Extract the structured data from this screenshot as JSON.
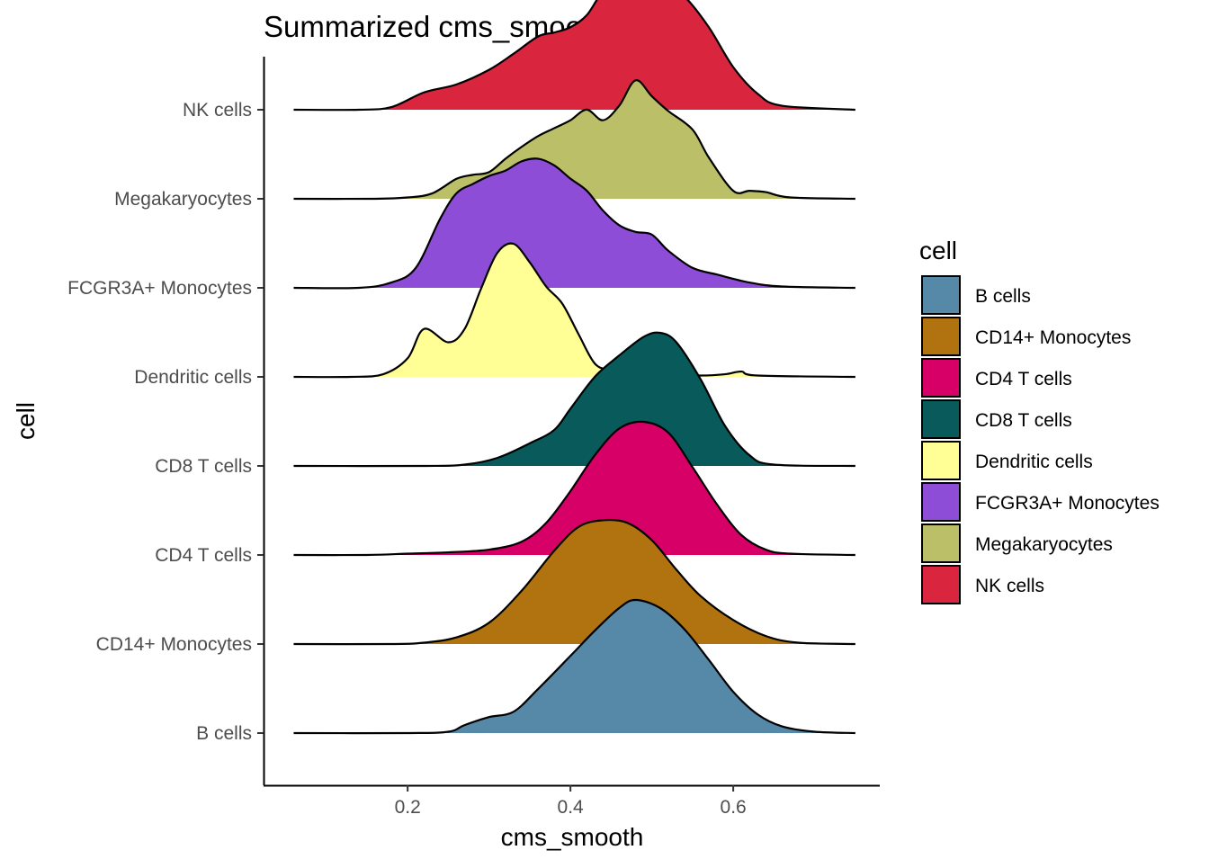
{
  "chart_data": {
    "type": "ridgeline",
    "title": "Summarized cms_smooth",
    "xlabel": "cms_smooth",
    "ylabel": "cell",
    "xlim": [
      0.023,
      0.78
    ],
    "x_ticks": [
      0.2,
      0.4,
      0.6
    ],
    "x_tick_labels": [
      "0.2",
      "0.4",
      "0.6"
    ],
    "grid": false,
    "legend": {
      "title": "cell",
      "position": "right",
      "entries": [
        {
          "label": "B cells",
          "color": "#5689a7"
        },
        {
          "label": "CD14+ Monocytes",
          "color": "#b0730f"
        },
        {
          "label": "CD4 T cells",
          "color": "#d60066"
        },
        {
          "label": "CD8 T cells",
          "color": "#095a5a"
        },
        {
          "label": "Dendritic cells",
          "color": "#ffff96"
        },
        {
          "label": "FCGR3A+ Monocytes",
          "color": "#8e4dd6"
        },
        {
          "label": "Megakaryocytes",
          "color": "#bbbf68"
        },
        {
          "label": "NK cells",
          "color": "#d9253e"
        }
      ]
    },
    "categories": [
      "B cells",
      "CD14+ Monocytes",
      "CD4 T cells",
      "CD8 T cells",
      "Dendritic cells",
      "FCGR3A+ Monocytes",
      "Megakaryocytes",
      "NK cells"
    ],
    "x_range": [
      0.06,
      0.75
    ],
    "series": [
      {
        "name": "B cells",
        "color": "#5689a7",
        "x": [
          0.06,
          0.2,
          0.25,
          0.27,
          0.3,
          0.33,
          0.36,
          0.4,
          0.43,
          0.46,
          0.48,
          0.51,
          0.54,
          0.57,
          0.6,
          0.63,
          0.66,
          0.7,
          0.75
        ],
        "y": [
          0,
          0,
          0.01,
          0.06,
          0.12,
          0.16,
          0.33,
          0.58,
          0.77,
          0.94,
          1.0,
          0.94,
          0.78,
          0.55,
          0.31,
          0.14,
          0.05,
          0.01,
          0
        ]
      },
      {
        "name": "CD14+ Monocytes",
        "color": "#b0730f",
        "x": [
          0.06,
          0.18,
          0.22,
          0.26,
          0.3,
          0.34,
          0.38,
          0.41,
          0.44,
          0.47,
          0.5,
          0.53,
          0.56,
          0.6,
          0.64,
          0.68,
          0.75
        ],
        "y": [
          0,
          0,
          0.01,
          0.05,
          0.16,
          0.4,
          0.7,
          0.88,
          0.93,
          0.91,
          0.78,
          0.56,
          0.36,
          0.18,
          0.06,
          0.01,
          0
        ]
      },
      {
        "name": "CD4 T cells",
        "color": "#d60066",
        "x": [
          0.06,
          0.15,
          0.2,
          0.25,
          0.3,
          0.34,
          0.37,
          0.4,
          0.43,
          0.46,
          0.49,
          0.52,
          0.55,
          0.58,
          0.61,
          0.64,
          0.67,
          0.75
        ],
        "y": [
          0,
          0,
          0.01,
          0.02,
          0.04,
          0.1,
          0.24,
          0.48,
          0.75,
          0.95,
          1.0,
          0.92,
          0.66,
          0.38,
          0.15,
          0.04,
          0.01,
          0
        ]
      },
      {
        "name": "CD8 T cells",
        "color": "#095a5a",
        "x": [
          0.06,
          0.22,
          0.27,
          0.31,
          0.35,
          0.38,
          0.4,
          0.43,
          0.46,
          0.49,
          0.51,
          0.53,
          0.56,
          0.59,
          0.62,
          0.65,
          0.75
        ],
        "y": [
          0,
          0,
          0.01,
          0.06,
          0.17,
          0.27,
          0.43,
          0.67,
          0.83,
          0.97,
          1.0,
          0.93,
          0.65,
          0.3,
          0.08,
          0.01,
          0
        ]
      },
      {
        "name": "Dendritic cells",
        "color": "#ffff96",
        "x": [
          0.06,
          0.13,
          0.17,
          0.2,
          0.22,
          0.25,
          0.27,
          0.29,
          0.31,
          0.33,
          0.35,
          0.37,
          0.39,
          0.41,
          0.43,
          0.45,
          0.47,
          0.5,
          0.53,
          0.56,
          0.59,
          0.61,
          0.63,
          0.75
        ],
        "y": [
          0,
          0,
          0.02,
          0.14,
          0.36,
          0.26,
          0.36,
          0.66,
          0.93,
          1.0,
          0.86,
          0.68,
          0.55,
          0.32,
          0.1,
          0.05,
          0.04,
          0.07,
          0.02,
          0.01,
          0.02,
          0.04,
          0.01,
          0
        ]
      },
      {
        "name": "FCGR3A+ Monocytes",
        "color": "#8e4dd6",
        "x": [
          0.06,
          0.14,
          0.18,
          0.21,
          0.24,
          0.26,
          0.28,
          0.3,
          0.32,
          0.34,
          0.36,
          0.38,
          0.4,
          0.42,
          0.44,
          0.46,
          0.48,
          0.5,
          0.52,
          0.55,
          0.58,
          0.62,
          0.66,
          0.75
        ],
        "y": [
          0,
          0,
          0.04,
          0.15,
          0.52,
          0.71,
          0.78,
          0.84,
          0.88,
          0.95,
          0.97,
          0.92,
          0.82,
          0.73,
          0.58,
          0.47,
          0.42,
          0.4,
          0.28,
          0.15,
          0.1,
          0.04,
          0.01,
          0
        ]
      },
      {
        "name": "Megakaryocytes",
        "color": "#bbbf68",
        "x": [
          0.06,
          0.16,
          0.2,
          0.23,
          0.26,
          0.28,
          0.3,
          0.32,
          0.34,
          0.36,
          0.38,
          0.4,
          0.42,
          0.44,
          0.46,
          0.48,
          0.5,
          0.52,
          0.55,
          0.57,
          0.6,
          0.62,
          0.64,
          0.67,
          0.75
        ],
        "y": [
          0,
          0,
          0.01,
          0.04,
          0.15,
          0.18,
          0.2,
          0.3,
          0.39,
          0.47,
          0.53,
          0.59,
          0.67,
          0.59,
          0.7,
          0.89,
          0.77,
          0.66,
          0.52,
          0.31,
          0.06,
          0.06,
          0.05,
          0.01,
          0
        ]
      },
      {
        "name": "NK cells",
        "color": "#d9253e",
        "x": [
          0.06,
          0.14,
          0.18,
          0.22,
          0.26,
          0.3,
          0.33,
          0.36,
          0.38,
          0.4,
          0.42,
          0.44,
          0.46,
          0.48,
          0.51,
          0.54,
          0.57,
          0.6,
          0.63,
          0.66,
          0.75
        ],
        "y": [
          0,
          0,
          0.02,
          0.13,
          0.19,
          0.3,
          0.42,
          0.55,
          0.58,
          0.62,
          0.71,
          0.89,
          0.96,
          1.0,
          0.96,
          0.85,
          0.62,
          0.32,
          0.12,
          0.03,
          0
        ]
      }
    ]
  }
}
